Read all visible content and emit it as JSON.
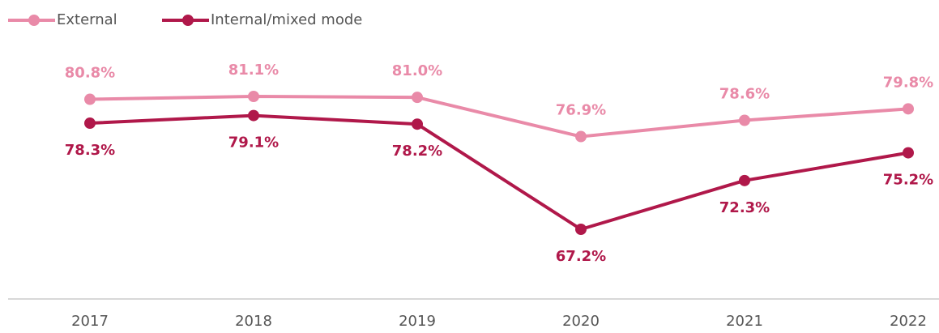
{
  "chart_data": {
    "type": "line",
    "categories": [
      "2017",
      "2018",
      "2019",
      "2020",
      "2021",
      "2022"
    ],
    "series": [
      {
        "name": "External",
        "color": "#e98aa8",
        "values": [
          80.8,
          81.1,
          81.0,
          76.9,
          78.6,
          79.8
        ],
        "value_labels": [
          "80.8%",
          "81.1%",
          "81.0%",
          "76.9%",
          "78.6%",
          "79.8%"
        ]
      },
      {
        "name": "Internal/mixed mode",
        "color": "#b0184a",
        "values": [
          78.3,
          79.1,
          78.2,
          67.2,
          72.3,
          75.2
        ],
        "value_labels": [
          "78.3%",
          "79.1%",
          "78.2%",
          "67.2%",
          "72.3%",
          "75.2%"
        ]
      }
    ],
    "legend": "top-left"
  }
}
